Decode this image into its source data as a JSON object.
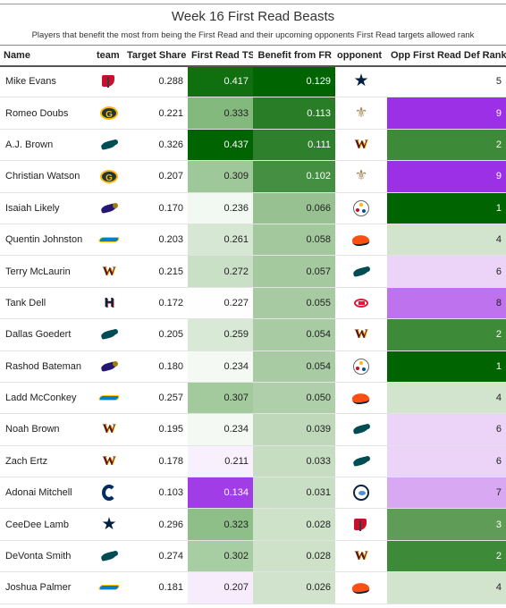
{
  "title": "Week 16 First Read Beasts",
  "subtitle": "Players that benefit the most from being the First Read and their upcoming opponents First Read targets allowed rank",
  "columns": {
    "name": "Name",
    "team": "team",
    "target_share": "Target Share",
    "first_read_ts": "First Read TS",
    "benefit": "Benefit from FR",
    "opponent": "opponent",
    "opp_rank": "Opp First Read Def Rank"
  },
  "team_logos": {
    "TB": {
      "icon": "buccaneers-logo",
      "color": "#c8102e"
    },
    "GB": {
      "icon": "packers-logo",
      "color": "#203731"
    },
    "PHI": {
      "icon": "eagles-logo",
      "color": "#004c54"
    },
    "BAL": {
      "icon": "ravens-logo",
      "color": "#241773"
    },
    "LAC": {
      "icon": "chargers-logo",
      "color": "#0080c6"
    },
    "WAS": {
      "icon": "commanders-logo",
      "color": "#5a1414"
    },
    "HOU": {
      "icon": "texans-logo",
      "color": "#03202f"
    },
    "IND": {
      "icon": "colts-logo",
      "color": "#002c5f"
    },
    "DAL": {
      "icon": "cowboys-logo",
      "color": "#041e42"
    },
    "NO": {
      "icon": "saints-logo",
      "color": "#9f8958"
    },
    "PIT": {
      "icon": "steelers-logo",
      "color": "#ffb612"
    },
    "DEN": {
      "icon": "broncos-logo",
      "color": "#fb4f14"
    },
    "KC": {
      "icon": "chiefs-logo",
      "color": "#e31837"
    },
    "TEN": {
      "icon": "titans-logo",
      "color": "#4b92db"
    }
  },
  "rows": [
    {
      "name": "Mike Evans",
      "team": "TB",
      "target_share": "0.288",
      "first_read_ts": "0.417",
      "benefit": "0.129",
      "opponent": "DAL",
      "opp_rank": "5"
    },
    {
      "name": "Romeo Doubs",
      "team": "GB",
      "target_share": "0.221",
      "first_read_ts": "0.333",
      "benefit": "0.113",
      "opponent": "NO",
      "opp_rank": "9"
    },
    {
      "name": "A.J. Brown",
      "team": "PHI",
      "target_share": "0.326",
      "first_read_ts": "0.437",
      "benefit": "0.111",
      "opponent": "WAS",
      "opp_rank": "2"
    },
    {
      "name": "Christian Watson",
      "team": "GB",
      "target_share": "0.207",
      "first_read_ts": "0.309",
      "benefit": "0.102",
      "opponent": "NO",
      "opp_rank": "9"
    },
    {
      "name": "Isaiah Likely",
      "team": "BAL",
      "target_share": "0.170",
      "first_read_ts": "0.236",
      "benefit": "0.066",
      "opponent": "PIT",
      "opp_rank": "1"
    },
    {
      "name": "Quentin Johnston",
      "team": "LAC",
      "target_share": "0.203",
      "first_read_ts": "0.261",
      "benefit": "0.058",
      "opponent": "DEN",
      "opp_rank": "4"
    },
    {
      "name": "Terry McLaurin",
      "team": "WAS",
      "target_share": "0.215",
      "first_read_ts": "0.272",
      "benefit": "0.057",
      "opponent": "PHI",
      "opp_rank": "6"
    },
    {
      "name": "Tank Dell",
      "team": "HOU",
      "target_share": "0.172",
      "first_read_ts": "0.227",
      "benefit": "0.055",
      "opponent": "KC",
      "opp_rank": "8"
    },
    {
      "name": "Dallas Goedert",
      "team": "PHI",
      "target_share": "0.205",
      "first_read_ts": "0.259",
      "benefit": "0.054",
      "opponent": "WAS",
      "opp_rank": "2"
    },
    {
      "name": "Rashod Bateman",
      "team": "BAL",
      "target_share": "0.180",
      "first_read_ts": "0.234",
      "benefit": "0.054",
      "opponent": "PIT",
      "opp_rank": "1"
    },
    {
      "name": "Ladd McConkey",
      "team": "LAC",
      "target_share": "0.257",
      "first_read_ts": "0.307",
      "benefit": "0.050",
      "opponent": "DEN",
      "opp_rank": "4"
    },
    {
      "name": "Noah Brown",
      "team": "WAS",
      "target_share": "0.195",
      "first_read_ts": "0.234",
      "benefit": "0.039",
      "opponent": "PHI",
      "opp_rank": "6"
    },
    {
      "name": "Zach Ertz",
      "team": "WAS",
      "target_share": "0.178",
      "first_read_ts": "0.211",
      "benefit": "0.033",
      "opponent": "PHI",
      "opp_rank": "6"
    },
    {
      "name": "Adonai Mitchell",
      "team": "IND",
      "target_share": "0.103",
      "first_read_ts": "0.134",
      "benefit": "0.031",
      "opponent": "TEN",
      "opp_rank": "7"
    },
    {
      "name": "CeeDee Lamb",
      "team": "DAL",
      "target_share": "0.296",
      "first_read_ts": "0.323",
      "benefit": "0.028",
      "opponent": "TB",
      "opp_rank": "3"
    },
    {
      "name": "DeVonta Smith",
      "team": "PHI",
      "target_share": "0.274",
      "first_read_ts": "0.302",
      "benefit": "0.028",
      "opponent": "WAS",
      "opp_rank": "2"
    },
    {
      "name": "Joshua Palmer",
      "team": "LAC",
      "target_share": "0.181",
      "first_read_ts": "0.207",
      "benefit": "0.026",
      "opponent": "DEN",
      "opp_rank": "4"
    }
  ],
  "scale_colors": {
    "green_dark": "#006400",
    "green_mid": "#4e9a44",
    "white": "#ffffff",
    "purple_light": "#e8cdf7",
    "purple_dark": "#9b30e6"
  }
}
